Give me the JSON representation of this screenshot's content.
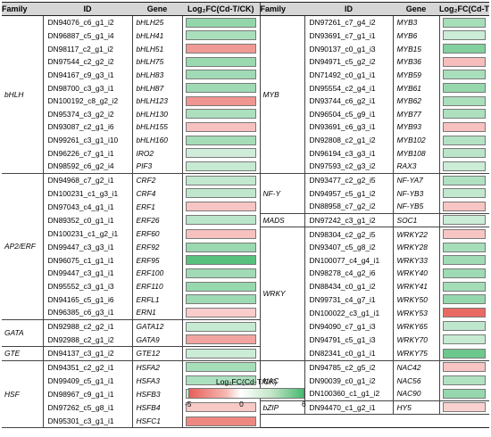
{
  "headers": {
    "family": "Family",
    "id": "ID",
    "gene": "Gene",
    "fc": "Log₂FC(Cd-T/CK)"
  },
  "colors": {
    "neg": "#e8605a",
    "pos": "#48ba70",
    "zero": "#ffffff"
  },
  "left": [
    {
      "family": "bHLH",
      "rows": [
        {
          "id": "DN94076_c6_g1_i2",
          "gene": "bHLH25",
          "fc": 2.3
        },
        {
          "id": "DN96887_c5_g1_i4",
          "gene": "bHLH41",
          "fc": 1.5
        },
        {
          "id": "DN98117_c2_g1_i2",
          "gene": "bHLH51",
          "fc": -2.2
        },
        {
          "id": "DN97544_c2_g2_i2",
          "gene": "bHLH75",
          "fc": 2.0
        },
        {
          "id": "DN94167_c9_g3_i1",
          "gene": "bHLH83",
          "fc": 1.8
        },
        {
          "id": "DN98700_c3_g3_i1",
          "gene": "bHLH87",
          "fc": 1.9
        },
        {
          "id": "DN100192_c8_g2_i2",
          "gene": "bHLH123",
          "fc": -2.4
        },
        {
          "id": "DN95374_c3_g2_i2",
          "gene": "bHLH130",
          "fc": 1.4
        },
        {
          "id": "DN93087_c2_g1_i6",
          "gene": "bHLH155",
          "fc": -0.9
        },
        {
          "id": "DN99261_c3_g1_i10",
          "gene": "bHLH160",
          "fc": 1.7
        },
        {
          "id": "DN96226_c7_g1_i1",
          "gene": "IRO2",
          "fc": 0.5
        },
        {
          "id": "DN98592_c6_g2_i4",
          "gene": "PIF3",
          "fc": 0.7
        }
      ]
    },
    {
      "family": "AP2/ERF",
      "rows": [
        {
          "id": "DN94968_c7_g2_i1",
          "gene": "CRF2",
          "fc": 0.8
        },
        {
          "id": "DN100231_c1_g3_i1",
          "gene": "CRF4",
          "fc": 0.9
        },
        {
          "id": "DN97043_c4_g1_i1",
          "gene": "ERF1",
          "fc": -0.8
        },
        {
          "id": "DN89352_c0_g1_i1",
          "gene": "ERF26",
          "fc": 1.0
        },
        {
          "id": "DN100231_c1_g2_i1",
          "gene": "ERF60",
          "fc": -0.9
        },
        {
          "id": "DN99447_c3_g3_i1",
          "gene": "ERF92",
          "fc": 2.0
        },
        {
          "id": "DN96075_c1_g1_i1",
          "gene": "ERF95",
          "fc": 5.0
        },
        {
          "id": "DN99447_c3_g1_i1",
          "gene": "ERF100",
          "fc": 1.8
        },
        {
          "id": "DN95552_c3_g1_i3",
          "gene": "ERF110",
          "fc": 2.1
        },
        {
          "id": "DN94165_c5_g1_i6",
          "gene": "ERFL1",
          "fc": 1.9
        },
        {
          "id": "DN96385_c6_g3_i1",
          "gene": "ERN1",
          "fc": -0.6
        }
      ]
    },
    {
      "family": "GATA",
      "rows": [
        {
          "id": "DN92988_c2_g2_i1",
          "gene": "GATA12",
          "fc": 0.7
        },
        {
          "id": "DN92988_c2_g1_i2",
          "gene": "GATA9",
          "fc": -1.8
        }
      ]
    },
    {
      "family": "GTE",
      "rows": [
        {
          "id": "DN94137_c3_g1_i2",
          "gene": "GTE12",
          "fc": 0.6
        }
      ]
    },
    {
      "family": "HSF",
      "rows": [
        {
          "id": "DN94351_c2_g2_i1",
          "gene": "HSFA2",
          "fc": 1.6
        },
        {
          "id": "DN99409_c5_g1_i1",
          "gene": "HSFA3",
          "fc": 1.4
        },
        {
          "id": "DN98967_c9_g1_i1",
          "gene": "HSFB3",
          "fc": 0.9
        },
        {
          "id": "DN97262_c5_g8_i1",
          "gene": "HSFB4",
          "fc": -0.7
        },
        {
          "id": "DN95301_c3_g1_i1",
          "gene": "HSFC1",
          "fc": -3.0
        }
      ]
    }
  ],
  "right": [
    {
      "family": "MYB",
      "rows": [
        {
          "id": "DN97261_c7_g4_i2",
          "gene": "MYB3",
          "fc": 1.6
        },
        {
          "id": "DN93691_c7_g1_i1",
          "gene": "MYB6",
          "fc": 0.6
        },
        {
          "id": "DN90137_c0_g1_i3",
          "gene": "MYB15",
          "fc": 3.0
        },
        {
          "id": "DN94971_c5_g2_i2",
          "gene": "MYB36",
          "fc": -1.0
        },
        {
          "id": "DN71492_c0_g1_i1",
          "gene": "MYB59",
          "fc": 1.5
        },
        {
          "id": "DN95554_c2_g4_i1",
          "gene": "MYB61",
          "fc": 2.2
        },
        {
          "id": "DN93744_c6_g2_i1",
          "gene": "MYB62",
          "fc": 1.5
        },
        {
          "id": "DN96504_c5_g9_i1",
          "gene": "MYB77",
          "fc": 1.4
        },
        {
          "id": "DN93691_c6_g3_i1",
          "gene": "MYB93",
          "fc": -0.9
        },
        {
          "id": "DN92808_c2_g1_i2",
          "gene": "MYB102",
          "fc": 1.2
        },
        {
          "id": "DN96194_c3_g3_i1",
          "gene": "MYB108",
          "fc": 1.0
        },
        {
          "id": "DN97593_c2_g3_i2",
          "gene": "RAX3",
          "fc": 0.6
        }
      ]
    },
    {
      "family": "NF-Y",
      "rows": [
        {
          "id": "DN93477_c2_g2_i5",
          "gene": "NF-YA7",
          "fc": 1.3
        },
        {
          "id": "DN94957_c5_g1_i2",
          "gene": "NF-YB3",
          "fc": 0.8
        },
        {
          "id": "DN88958_c7_g2_i2",
          "gene": "NF-YB5",
          "fc": -0.8
        }
      ]
    },
    {
      "family": "MADS",
      "rows": [
        {
          "id": "DN97242_c3_g1_i2",
          "gene": "SOC1",
          "fc": 0.6
        }
      ]
    },
    {
      "family": "WRKY",
      "rows": [
        {
          "id": "DN98304_c2_g2_i5",
          "gene": "WRKY22",
          "fc": -0.8
        },
        {
          "id": "DN93407_c5_g8_i2",
          "gene": "WRKY28",
          "fc": 1.6
        },
        {
          "id": "DN100077_c4_g4_i1",
          "gene": "WRKY33",
          "fc": 1.8
        },
        {
          "id": "DN98278_c4_g2_i6",
          "gene": "WRKY40",
          "fc": 1.9
        },
        {
          "id": "DN88434_c0_g1_i2",
          "gene": "WRKY41",
          "fc": 1.7
        },
        {
          "id": "DN99731_c4_g7_i1",
          "gene": "WRKY50",
          "fc": 2.2
        },
        {
          "id": "DN100022_c3_g1_i1",
          "gene": "WRKY53",
          "fc": -4.5
        },
        {
          "id": "DN94090_c7_g1_i3",
          "gene": "WRKY65",
          "fc": 0.9
        },
        {
          "id": "DN94791_c5_g1_i3",
          "gene": "WRKY70",
          "fc": 0.7
        },
        {
          "id": "DN82341_c0_g1_i1",
          "gene": "WRKY75",
          "fc": 4.0
        }
      ]
    },
    {
      "family": "NAC",
      "rows": [
        {
          "id": "DN94785_c2_g5_i2",
          "gene": "NAC42",
          "fc": -0.8
        },
        {
          "id": "DN90039_c0_g1_i2",
          "gene": "NAC56",
          "fc": 1.3
        },
        {
          "id": "DN100360_c1_g1_i2",
          "gene": "NAC90",
          "fc": 2.2
        }
      ]
    },
    {
      "family": "bZIP",
      "rows": [
        {
          "id": "DN94470_c1_g2_i1",
          "gene": "HY5",
          "fc": -0.5
        }
      ]
    }
  ],
  "legend": {
    "title": "Log₂FC(Cd-T/CK)",
    "min": -5,
    "mid": 0,
    "max": 6,
    "min_label": "-5",
    "mid_label": "0",
    "max_label": "6"
  }
}
